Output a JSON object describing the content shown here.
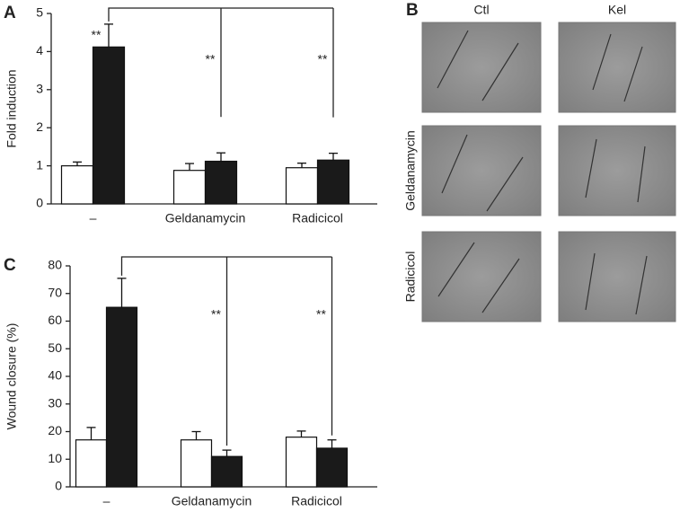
{
  "chart_data": [
    {
      "type": "bar",
      "panel_label": "A",
      "y_label": "Fold induction",
      "categories": [
        "–",
        "Geldanamycin",
        "Radicicol"
      ],
      "series": [
        {
          "color": "#ffffff",
          "values": [
            1.0,
            0.88,
            0.95
          ],
          "errors": [
            0.1,
            0.18,
            0.12
          ]
        },
        {
          "color": "#1a1a1a",
          "values": [
            4.12,
            1.12,
            1.15
          ],
          "errors": [
            0.6,
            0.22,
            0.18
          ]
        }
      ],
      "ylim": [
        0,
        5
      ],
      "yticks": [
        0,
        1,
        2,
        3,
        4,
        5
      ],
      "annotations": [
        "**",
        "**",
        "**"
      ]
    },
    {
      "type": "bar",
      "panel_label": "C",
      "y_label": "Wound closure (%)",
      "categories": [
        "–",
        "Geldanamycin",
        "Radicicol"
      ],
      "series": [
        {
          "color": "#ffffff",
          "values": [
            17,
            17,
            18
          ],
          "errors": [
            4.5,
            3,
            2.2
          ]
        },
        {
          "color": "#1a1a1a",
          "values": [
            65,
            11,
            14
          ],
          "errors": [
            10.5,
            2.3,
            3
          ]
        }
      ],
      "ylim": [
        0,
        80
      ],
      "yticks": [
        0,
        10,
        20,
        30,
        40,
        50,
        60,
        70,
        80
      ],
      "annotations": [
        "**",
        "**"
      ]
    }
  ],
  "panel_b": {
    "label": "B",
    "columns": [
      "Ctl",
      "Kel"
    ],
    "rows": [
      "Geldanamycin",
      "Radicicol"
    ]
  }
}
